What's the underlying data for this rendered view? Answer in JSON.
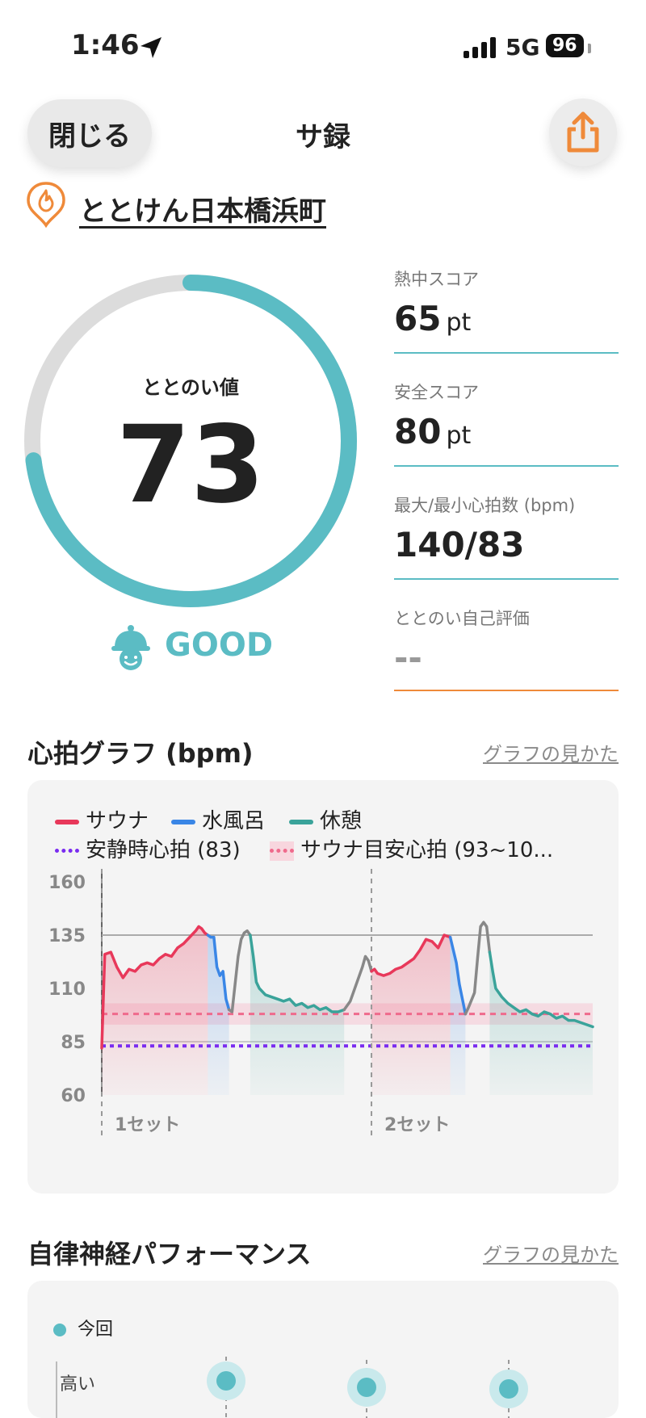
{
  "status": {
    "time": "1:46",
    "network": "5G",
    "battery": "96"
  },
  "header": {
    "close_label": "閉じる",
    "title": "サ録"
  },
  "facility": {
    "name": "ととけん日本橋浜町"
  },
  "gauge": {
    "label": "ととのい値",
    "value": "73",
    "fraction": 0.73,
    "rating": "GOOD"
  },
  "metrics": [
    {
      "label": "熱中スコア",
      "value": "65",
      "unit": "pt"
    },
    {
      "label": "安全スコア",
      "value": "80",
      "unit": "pt"
    },
    {
      "label": "最大/最小心拍数 (bpm)",
      "value": "140/83",
      "unit": ""
    },
    {
      "label": "ととのい自己評価",
      "value": "--",
      "unit": ""
    }
  ],
  "heart_section": {
    "title": "心拍グラフ (bpm)",
    "help_link": "グラフの見かた"
  },
  "legend": {
    "sauna": "サウナ",
    "water": "水風呂",
    "rest": "休憩",
    "resting_hr": "安静時心拍 (83)",
    "target_hr": "サウナ目安心拍 (93~10..."
  },
  "colors": {
    "sauna": "#e8385a",
    "water": "#3a86e6",
    "rest": "#3aa39a",
    "resting": "#7a2cf0",
    "target": "#ef6a8c",
    "accent": "#5bbcc4",
    "orange": "#ef8a3a"
  },
  "chart_data": {
    "type": "line",
    "ylim": [
      60,
      160
    ],
    "yticks": [
      "160",
      "135",
      "110",
      "85",
      "60"
    ],
    "set_labels": [
      "1セット",
      "2セット"
    ],
    "resting_hr": 83,
    "target_band": [
      93,
      103
    ],
    "target_line": 98,
    "reference_line": 135,
    "segments": [
      {
        "phase": "sauna",
        "points": [
          [
            0,
            82
          ],
          [
            1,
            126
          ],
          [
            3,
            127
          ],
          [
            5,
            120
          ],
          [
            7,
            115
          ],
          [
            9,
            119
          ],
          [
            11,
            118
          ],
          [
            13,
            121
          ],
          [
            15,
            122
          ],
          [
            17,
            121
          ],
          [
            19,
            124
          ],
          [
            21,
            126
          ],
          [
            23,
            125
          ],
          [
            25,
            129
          ],
          [
            27,
            131
          ],
          [
            29,
            134
          ],
          [
            31,
            137
          ],
          [
            32,
            139
          ],
          [
            33,
            138
          ],
          [
            34,
            136
          ],
          [
            35,
            135
          ]
        ]
      },
      {
        "phase": "water",
        "points": [
          [
            35,
            135
          ],
          [
            36,
            134
          ],
          [
            37,
            134
          ],
          [
            38,
            120
          ],
          [
            39,
            116
          ],
          [
            40,
            118
          ],
          [
            41,
            105
          ],
          [
            42,
            100
          ]
        ]
      },
      {
        "phase": "transition",
        "points": [
          [
            42,
            100
          ],
          [
            43,
            99
          ],
          [
            44,
            112
          ],
          [
            45,
            125
          ],
          [
            46,
            133
          ],
          [
            47,
            136
          ],
          [
            48,
            137
          ],
          [
            49,
            135
          ]
        ]
      },
      {
        "phase": "rest",
        "points": [
          [
            49,
            135
          ],
          [
            50,
            125
          ],
          [
            51,
            113
          ],
          [
            52,
            110
          ],
          [
            54,
            107
          ],
          [
            56,
            106
          ],
          [
            58,
            105
          ],
          [
            60,
            104
          ],
          [
            62,
            105
          ],
          [
            64,
            102
          ],
          [
            66,
            103
          ],
          [
            68,
            101
          ],
          [
            70,
            102
          ],
          [
            72,
            100
          ],
          [
            74,
            101
          ],
          [
            76,
            99
          ],
          [
            78,
            99
          ],
          [
            80,
            100
          ]
        ]
      },
      {
        "phase": "transition",
        "points": [
          [
            80,
            100
          ],
          [
            82,
            104
          ],
          [
            84,
            112
          ],
          [
            86,
            120
          ],
          [
            87,
            125
          ],
          [
            88,
            123
          ],
          [
            89,
            118
          ]
        ]
      },
      {
        "phase": "sauna",
        "points": [
          [
            89,
            118
          ],
          [
            90,
            119
          ],
          [
            91,
            117
          ],
          [
            93,
            116
          ],
          [
            95,
            117
          ],
          [
            97,
            119
          ],
          [
            99,
            120
          ],
          [
            101,
            122
          ],
          [
            103,
            124
          ],
          [
            105,
            128
          ],
          [
            107,
            133
          ],
          [
            109,
            132
          ],
          [
            111,
            129
          ],
          [
            113,
            135
          ],
          [
            115,
            134
          ]
        ]
      },
      {
        "phase": "water",
        "points": [
          [
            115,
            134
          ],
          [
            116,
            128
          ],
          [
            117,
            122
          ],
          [
            118,
            112
          ],
          [
            119,
            105
          ],
          [
            120,
            98
          ]
        ]
      },
      {
        "phase": "transition",
        "points": [
          [
            120,
            98
          ],
          [
            121,
            101
          ],
          [
            123,
            108
          ],
          [
            124,
            124
          ],
          [
            125,
            139
          ],
          [
            126,
            141
          ],
          [
            127,
            139
          ],
          [
            128,
            127
          ]
        ]
      },
      {
        "phase": "rest",
        "points": [
          [
            128,
            127
          ],
          [
            129,
            118
          ],
          [
            130,
            110
          ],
          [
            132,
            106
          ],
          [
            134,
            103
          ],
          [
            136,
            101
          ],
          [
            138,
            99
          ],
          [
            140,
            100
          ],
          [
            142,
            98
          ],
          [
            144,
            97
          ],
          [
            146,
            99
          ],
          [
            148,
            98
          ],
          [
            150,
            96
          ],
          [
            152,
            97
          ],
          [
            154,
            95
          ],
          [
            156,
            95
          ],
          [
            158,
            94
          ],
          [
            160,
            93
          ],
          [
            162,
            92
          ]
        ]
      }
    ]
  },
  "ans_section": {
    "title": "自律神経パフォーマンス",
    "help_link": "グラフの見かた",
    "legend": "今回",
    "y_label": "高い"
  }
}
